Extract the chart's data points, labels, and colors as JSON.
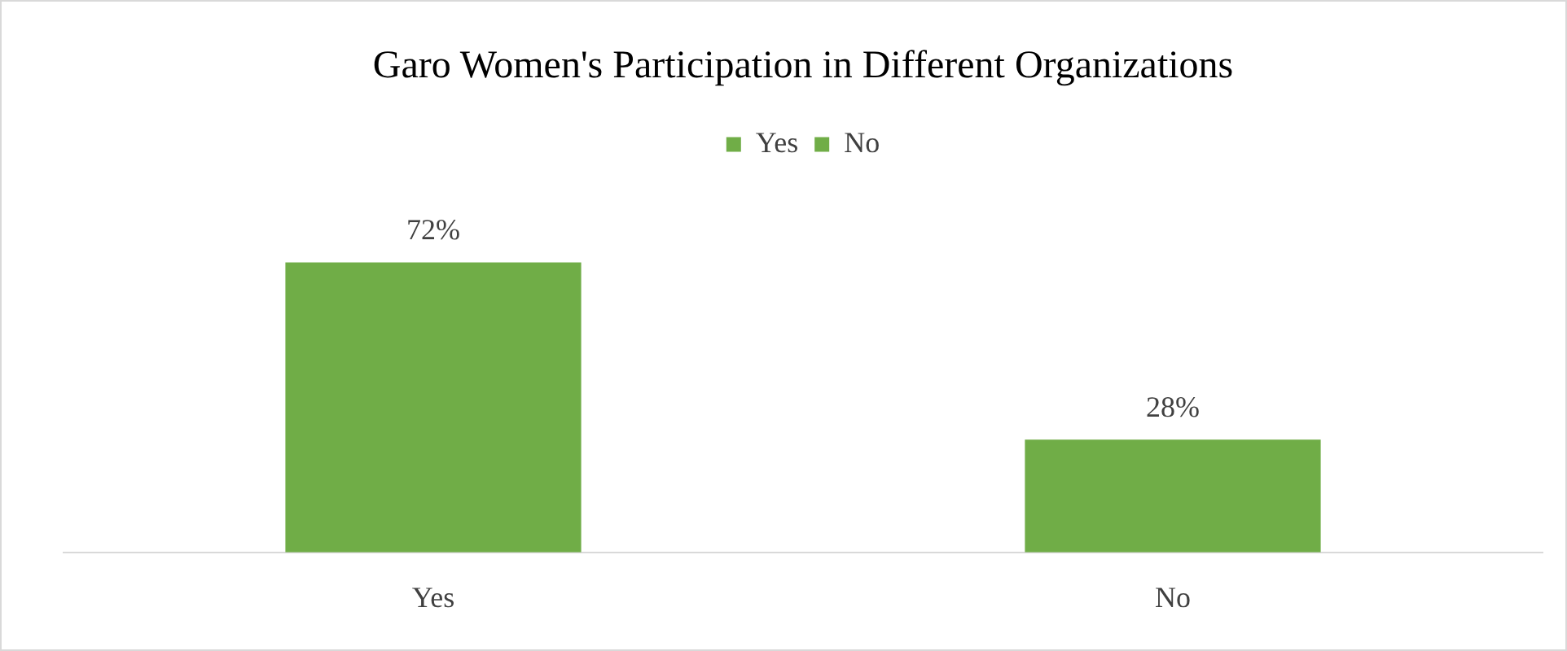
{
  "chart_data": {
    "type": "bar",
    "title": "Garo Women's Participation in Different Organizations",
    "categories": [
      "Yes",
      "No"
    ],
    "series": [
      {
        "name": "Yes",
        "color": "#70ad47",
        "values": [
          72,
          null
        ],
        "value_labels": [
          "72%",
          null
        ]
      },
      {
        "name": "No",
        "color": "#70ad47",
        "values": [
          null,
          28
        ],
        "value_labels": [
          null,
          "28%"
        ]
      }
    ],
    "legend": "top"
  }
}
